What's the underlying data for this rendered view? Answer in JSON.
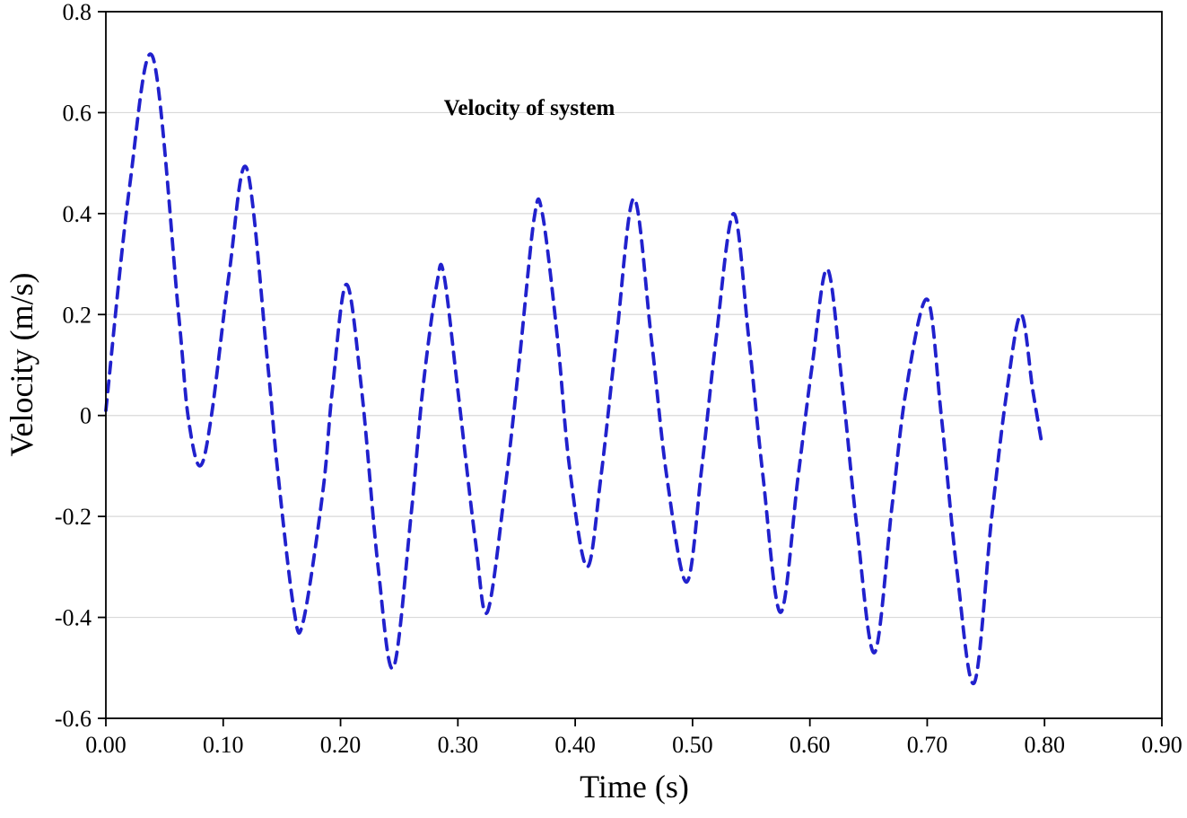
{
  "figure": {
    "background": "#ffffff",
    "frame_color": "#000000",
    "grid_color": "#d9d9d9"
  },
  "chart_data": {
    "type": "line",
    "title": "Velocity of system",
    "xlabel": "Time (s)",
    "ylabel": "Velocity (m/s)",
    "xlim": [
      0.0,
      0.9
    ],
    "ylim": [
      -0.6,
      0.8
    ],
    "grid": "horizontal",
    "legend_position": "none",
    "xticks": {
      "values": [
        0.0,
        0.1,
        0.2,
        0.3,
        0.4,
        0.5,
        0.6,
        0.7,
        0.8,
        0.9
      ],
      "labels": [
        "0.00",
        "0.10",
        "0.20",
        "0.30",
        "0.40",
        "0.50",
        "0.60",
        "0.70",
        "0.80",
        "0.90"
      ]
    },
    "yticks": {
      "values": [
        0.8,
        0.6,
        0.4,
        0.2,
        0.0,
        -0.2,
        -0.4,
        -0.6
      ],
      "labels": [
        "0.8",
        "0.6",
        "0.4",
        "0.2",
        "0",
        "-0.2",
        "-0.4",
        "-0.6"
      ]
    },
    "series": [
      {
        "name": "Velocity of system",
        "color": "#2121cd",
        "style": "dashed",
        "line_width": 3.8,
        "points": [
          [
            0.0,
            0.01
          ],
          [
            0.02,
            0.45
          ],
          [
            0.04,
            0.71
          ],
          [
            0.062,
            0.2
          ],
          [
            0.07,
            0.0
          ],
          [
            0.08,
            -0.1
          ],
          [
            0.09,
            0.0
          ],
          [
            0.105,
            0.28
          ],
          [
            0.12,
            0.49
          ],
          [
            0.138,
            0.1
          ],
          [
            0.146,
            -0.1
          ],
          [
            0.16,
            -0.38
          ],
          [
            0.168,
            -0.41
          ],
          [
            0.185,
            -0.15
          ],
          [
            0.193,
            0.05
          ],
          [
            0.205,
            0.26
          ],
          [
            0.218,
            0.05
          ],
          [
            0.232,
            -0.3
          ],
          [
            0.245,
            -0.5
          ],
          [
            0.26,
            -0.2
          ],
          [
            0.27,
            0.05
          ],
          [
            0.282,
            0.26
          ],
          [
            0.288,
            0.28
          ],
          [
            0.3,
            0.05
          ],
          [
            0.315,
            -0.25
          ],
          [
            0.325,
            -0.39
          ],
          [
            0.34,
            -0.15
          ],
          [
            0.352,
            0.1
          ],
          [
            0.365,
            0.39
          ],
          [
            0.372,
            0.4
          ],
          [
            0.385,
            0.15
          ],
          [
            0.395,
            -0.1
          ],
          [
            0.41,
            -0.3
          ],
          [
            0.422,
            -0.12
          ],
          [
            0.435,
            0.15
          ],
          [
            0.45,
            0.43
          ],
          [
            0.465,
            0.15
          ],
          [
            0.478,
            -0.12
          ],
          [
            0.495,
            -0.33
          ],
          [
            0.508,
            -0.1
          ],
          [
            0.52,
            0.15
          ],
          [
            0.535,
            0.4
          ],
          [
            0.548,
            0.15
          ],
          [
            0.56,
            -0.12
          ],
          [
            0.575,
            -0.39
          ],
          [
            0.59,
            -0.12
          ],
          [
            0.602,
            0.1
          ],
          [
            0.615,
            0.29
          ],
          [
            0.628,
            0.05
          ],
          [
            0.64,
            -0.22
          ],
          [
            0.655,
            -0.47
          ],
          [
            0.67,
            -0.18
          ],
          [
            0.682,
            0.05
          ],
          [
            0.7,
            0.23
          ],
          [
            0.712,
            0.0
          ],
          [
            0.725,
            -0.3
          ],
          [
            0.74,
            -0.53
          ],
          [
            0.755,
            -0.2
          ],
          [
            0.768,
            0.05
          ],
          [
            0.78,
            0.2
          ],
          [
            0.79,
            0.05
          ],
          [
            0.798,
            -0.06
          ]
        ]
      }
    ]
  }
}
